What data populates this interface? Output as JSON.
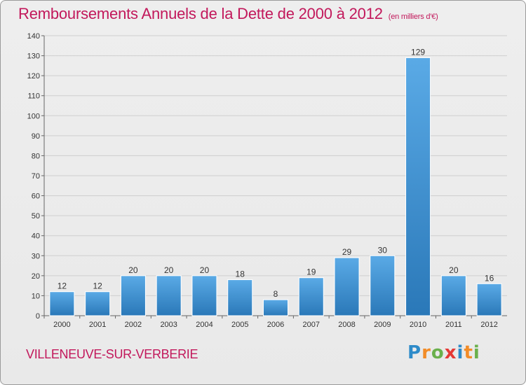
{
  "title": "Remboursements Annuels de la Dette de 2000 à 2012",
  "subtitle": "(en milliers d'€)",
  "commune": "VILLENEUVE-SUR-VERBERIE",
  "logo": {
    "text": "Proxiti",
    "letters": [
      {
        "ch": "P",
        "color": "#2e8bc9"
      },
      {
        "ch": "r",
        "color": "#f28c28"
      },
      {
        "ch": "o",
        "color": "#6ab04c"
      },
      {
        "ch": "x",
        "color": "#e53935"
      },
      {
        "ch": "i",
        "color": "#2e8bc9"
      },
      {
        "ch": "t",
        "color": "#f28c28"
      },
      {
        "ch": "i",
        "color": "#6ab04c"
      }
    ]
  },
  "colors": {
    "bar_top": "#5aaae6",
    "bar_bottom": "#2a78b8",
    "title": "#c2185b",
    "grid": "#cfcfcf"
  },
  "chart_data": {
    "type": "bar",
    "categories": [
      "2000",
      "2001",
      "2002",
      "2003",
      "2004",
      "2005",
      "2006",
      "2007",
      "2008",
      "2009",
      "2010",
      "2011",
      "2012"
    ],
    "values": [
      12,
      12,
      20,
      20,
      20,
      18,
      8,
      19,
      29,
      30,
      129,
      20,
      16
    ],
    "title": "Remboursements Annuels de la Dette de 2000 à 2012",
    "ylim": [
      0,
      140
    ],
    "yticks": [
      0,
      10,
      20,
      30,
      40,
      50,
      60,
      70,
      80,
      90,
      100,
      110,
      120,
      130,
      140
    ],
    "grid": true,
    "data_labels": true
  }
}
